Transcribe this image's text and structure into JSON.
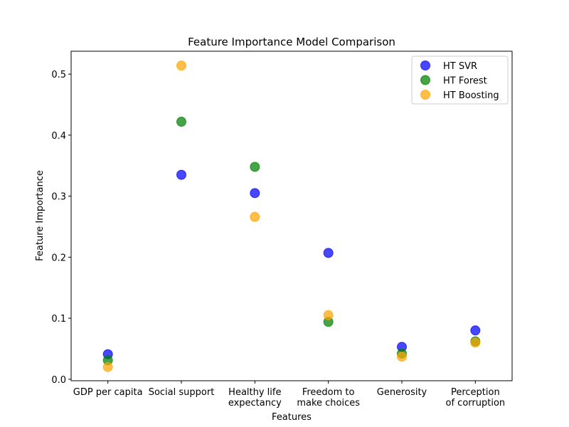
{
  "chart_data": {
    "type": "scatter",
    "title": "Feature Importance Model Comparison",
    "xlabel": "Features",
    "ylabel": "Feature Importance",
    "categories": [
      [
        "GDP per capita"
      ],
      [
        "Social support"
      ],
      [
        "Healthy life",
        "expectancy"
      ],
      [
        "Freedom to",
        "make choices"
      ],
      [
        "Generosity"
      ],
      [
        "Perception",
        "of corruption"
      ]
    ],
    "y_ticks": [
      "0.0",
      "0.1",
      "0.2",
      "0.3",
      "0.4",
      "0.5"
    ],
    "ylim": [
      -0.0025,
      0.5375
    ],
    "grid": false,
    "legend_position": "top-right",
    "series": [
      {
        "name": "HT SVR",
        "color": "#0000ff",
        "values": [
          0.041,
          0.335,
          0.305,
          0.207,
          0.053,
          0.08
        ]
      },
      {
        "name": "HT Forest",
        "color": "#008000",
        "values": [
          0.031,
          0.422,
          0.348,
          0.094,
          0.042,
          0.062
        ]
      },
      {
        "name": "HT Boosting",
        "color": "#ffa500",
        "values": [
          0.02,
          0.514,
          0.266,
          0.105,
          0.037,
          0.06
        ]
      }
    ]
  }
}
